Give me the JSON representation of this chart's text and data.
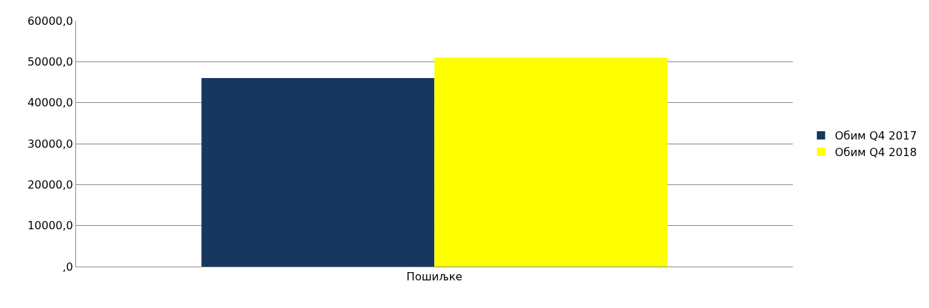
{
  "chart_data": {
    "type": "bar",
    "categories": [
      "Пошиљке"
    ],
    "series": [
      {
        "name": "Обим Q4 2017",
        "color": "#17375e",
        "values": [
          46000
        ]
      },
      {
        "name": "Обим Q4 2018",
        "color": "#ffff00",
        "values": [
          51000
        ]
      }
    ],
    "ylim": [
      0,
      60000
    ],
    "yticks": [
      {
        "value": 0,
        "label": ",0"
      },
      {
        "value": 10000,
        "label": "10000,0"
      },
      {
        "value": 20000,
        "label": "20000,0"
      },
      {
        "value": 30000,
        "label": "30000,0"
      },
      {
        "value": 40000,
        "label": "40000,0"
      },
      {
        "value": 50000,
        "label": "50000,0"
      },
      {
        "value": 60000,
        "label": "60000,0"
      }
    ],
    "grid": "y",
    "legend": "right"
  }
}
